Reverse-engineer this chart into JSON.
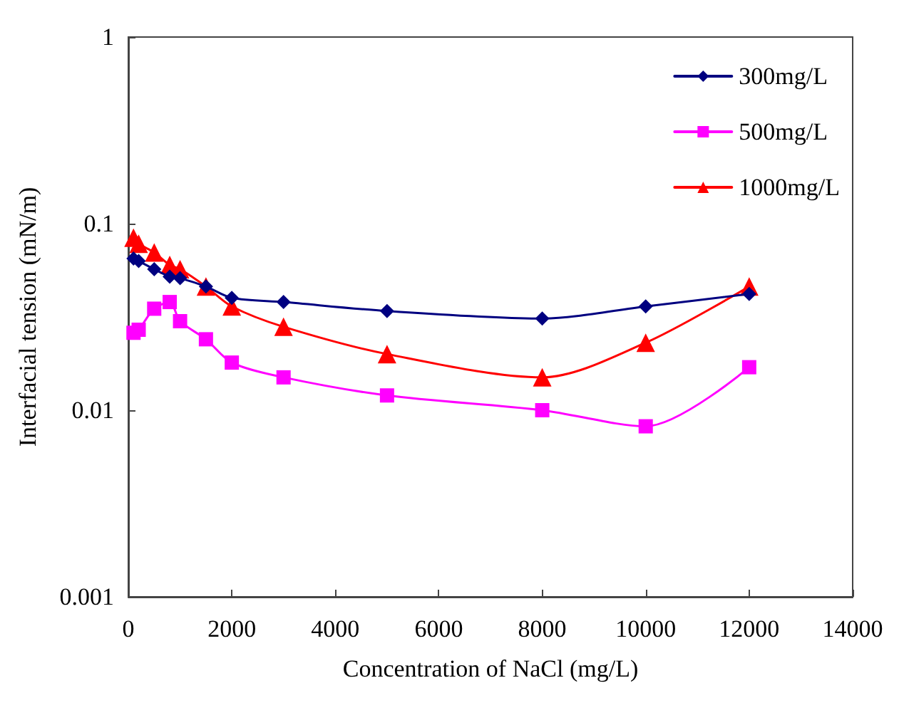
{
  "chart_data": {
    "type": "line",
    "xlabel": "Concentration of NaCl (mg/L)",
    "ylabel": "Interfacial tension (mN/m)",
    "x": [
      100,
      200,
      500,
      800,
      1000,
      1500,
      2000,
      3000,
      5000,
      8000,
      10000,
      12000
    ],
    "series": [
      {
        "name": "300mg/L",
        "color": "#000080",
        "marker": "diamond",
        "values": [
          0.065,
          0.063,
          0.057,
          0.052,
          0.051,
          0.046,
          0.04,
          0.038,
          0.034,
          0.031,
          0.036,
          0.042
        ]
      },
      {
        "name": "500mg/L",
        "color": "#ff00ff",
        "marker": "square",
        "values": [
          0.026,
          0.027,
          0.035,
          0.038,
          0.03,
          0.024,
          0.018,
          0.015,
          0.012,
          0.01,
          0.0082,
          0.017
        ]
      },
      {
        "name": "1000mg/L",
        "color": "#ff0000",
        "marker": "triangle",
        "values": [
          0.084,
          0.078,
          0.07,
          0.06,
          0.057,
          0.046,
          0.036,
          0.028,
          0.02,
          0.015,
          0.023,
          0.046
        ]
      }
    ],
    "xlim": [
      0,
      14000
    ],
    "xticks": [
      0,
      2000,
      4000,
      6000,
      8000,
      10000,
      12000,
      14000
    ],
    "ylim": [
      0.001,
      1
    ],
    "yticks": [
      0.001,
      0.01,
      0.1,
      1
    ],
    "log": "y",
    "grid": false,
    "legend": "top right"
  }
}
